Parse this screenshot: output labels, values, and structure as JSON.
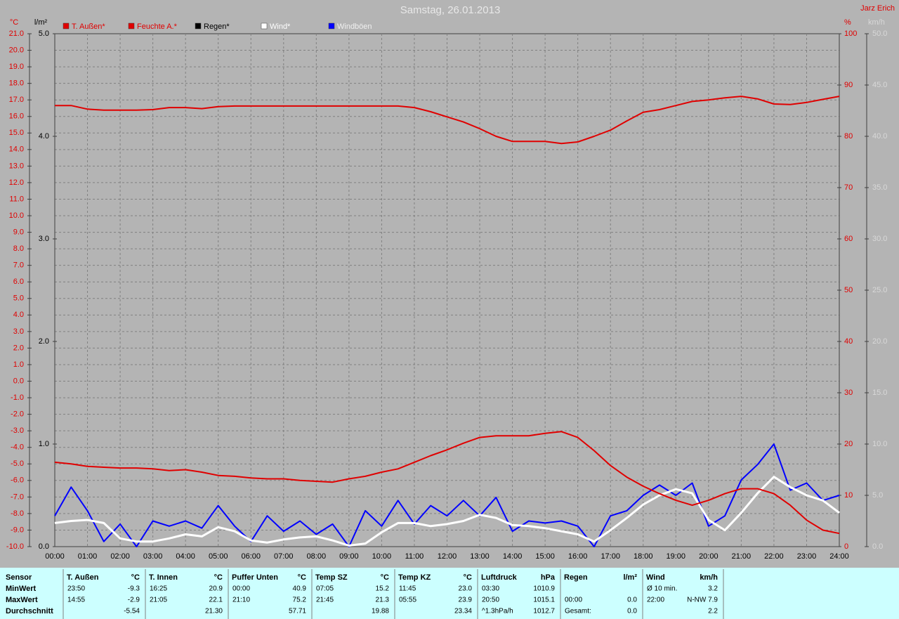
{
  "chart_data": {
    "type": "line",
    "title": "Samstag, 26.01.2013",
    "x": [
      0,
      0.5,
      1,
      1.5,
      2,
      2.5,
      3,
      3.5,
      4,
      4.5,
      5,
      5.5,
      6,
      6.5,
      7,
      7.5,
      8,
      8.5,
      9,
      9.5,
      10,
      10.5,
      11,
      11.5,
      12,
      12.5,
      13,
      13.5,
      14,
      14.5,
      15,
      15.5,
      16,
      16.5,
      17,
      17.5,
      18,
      18.5,
      19,
      19.5,
      20,
      20.5,
      21,
      21.5,
      22,
      22.5,
      23,
      23.5,
      24
    ],
    "xlim": [
      0,
      24
    ],
    "xticks": [
      {
        "value": 0,
        "label": "00:00"
      },
      {
        "value": 1,
        "label": "01:00"
      },
      {
        "value": 2,
        "label": "02:00"
      },
      {
        "value": 3,
        "label": "03:00"
      },
      {
        "value": 4,
        "label": "04:00"
      },
      {
        "value": 5,
        "label": "05:00"
      },
      {
        "value": 6,
        "label": "06:00"
      },
      {
        "value": 7,
        "label": "07:00"
      },
      {
        "value": 8,
        "label": "08:00"
      },
      {
        "value": 9,
        "label": "09:00"
      },
      {
        "value": 10,
        "label": "10:00"
      },
      {
        "value": 11,
        "label": "11:00"
      },
      {
        "value": 12,
        "label": "12:00"
      },
      {
        "value": 13,
        "label": "13:00"
      },
      {
        "value": 14,
        "label": "14:00"
      },
      {
        "value": 15,
        "label": "15:00"
      },
      {
        "value": 16,
        "label": "16:00"
      },
      {
        "value": 17,
        "label": "17:00"
      },
      {
        "value": 18,
        "label": "18:00"
      },
      {
        "value": 19,
        "label": "19:00"
      },
      {
        "value": 20,
        "label": "20:00"
      },
      {
        "value": 21,
        "label": "21:00"
      },
      {
        "value": 22,
        "label": "22:00"
      },
      {
        "value": 23,
        "label": "23:00"
      },
      {
        "value": 24,
        "label": "24:00"
      }
    ],
    "grid": true,
    "axes": [
      {
        "label": "°C",
        "side": "left",
        "color": "#e00000",
        "lim": [
          -10,
          21
        ],
        "ticks": [
          {
            "value": -10,
            "label": "-10.0"
          },
          {
            "value": -9,
            "label": "-9.0"
          },
          {
            "value": -8,
            "label": "-8.0"
          },
          {
            "value": -7,
            "label": "-7.0"
          },
          {
            "value": -6,
            "label": "-6.0"
          },
          {
            "value": -5,
            "label": "-5.0"
          },
          {
            "value": -4,
            "label": "-4.0"
          },
          {
            "value": -3,
            "label": "-3.0"
          },
          {
            "value": -2,
            "label": "-2.0"
          },
          {
            "value": -1,
            "label": "-1.0"
          },
          {
            "value": 0,
            "label": "0.0"
          },
          {
            "value": 1,
            "label": "1.0"
          },
          {
            "value": 2,
            "label": "2.0"
          },
          {
            "value": 3,
            "label": "3.0"
          },
          {
            "value": 4,
            "label": "4.0"
          },
          {
            "value": 5,
            "label": "5.0"
          },
          {
            "value": 6,
            "label": "6.0"
          },
          {
            "value": 7,
            "label": "7.0"
          },
          {
            "value": 8,
            "label": "8.0"
          },
          {
            "value": 9,
            "label": "9.0"
          },
          {
            "value": 10,
            "label": "10.0"
          },
          {
            "value": 11,
            "label": "11.0"
          },
          {
            "value": 12,
            "label": "12.0"
          },
          {
            "value": 13,
            "label": "13.0"
          },
          {
            "value": 14,
            "label": "14.0"
          },
          {
            "value": 15,
            "label": "15.0"
          },
          {
            "value": 16,
            "label": "16.0"
          },
          {
            "value": 17,
            "label": "17.0"
          },
          {
            "value": 18,
            "label": "18.0"
          },
          {
            "value": 19,
            "label": "19.0"
          },
          {
            "value": 20,
            "label": "20.0"
          },
          {
            "value": 21,
            "label": "21.0"
          }
        ]
      },
      {
        "label": "l/m²",
        "side": "left",
        "color": "#000000",
        "lim": [
          0,
          5
        ],
        "ticks": [
          {
            "value": 0,
            "label": "0.0"
          },
          {
            "value": 1,
            "label": "1.0"
          },
          {
            "value": 2,
            "label": "2.0"
          },
          {
            "value": 3,
            "label": "3.0"
          },
          {
            "value": 4,
            "label": "4.0"
          },
          {
            "value": 5,
            "label": "5.0"
          }
        ]
      },
      {
        "label": "%",
        "side": "right",
        "color": "#e00000",
        "lim": [
          0,
          100
        ],
        "ticks": [
          0,
          10,
          20,
          30,
          40,
          50,
          60,
          70,
          80,
          90,
          100
        ]
      },
      {
        "label": "km/h",
        "side": "right",
        "color": "#d8d8d8",
        "lim": [
          0,
          50
        ],
        "ticks": [
          {
            "value": 0,
            "label": "0.0"
          },
          {
            "value": 5,
            "label": "5.0"
          },
          {
            "value": 10,
            "label": "10.0"
          },
          {
            "value": 15,
            "label": "15.0"
          },
          {
            "value": 20,
            "label": "20.0"
          },
          {
            "value": 25,
            "label": "25.0"
          },
          {
            "value": 30,
            "label": "30.0"
          },
          {
            "value": 35,
            "label": "35.0"
          },
          {
            "value": 40,
            "label": "40.0"
          },
          {
            "value": 45,
            "label": "45.0"
          },
          {
            "value": 50,
            "label": "50.0"
          }
        ]
      }
    ],
    "series": [
      {
        "name": "T. Außen*",
        "color": "#e00000",
        "axis": 0,
        "values": [
          -4.9,
          -5.0,
          -5.15,
          -5.2,
          -5.25,
          -5.25,
          -5.3,
          -5.4,
          -5.35,
          -5.5,
          -5.7,
          -5.75,
          -5.85,
          -5.9,
          -5.9,
          -6.0,
          -6.05,
          -6.1,
          -5.9,
          -5.75,
          -5.5,
          -5.3,
          -4.9,
          -4.5,
          -4.15,
          -3.75,
          -3.4,
          -3.3,
          -3.3,
          -3.3,
          -3.15,
          -3.05,
          -3.4,
          -4.2,
          -5.1,
          -5.8,
          -6.35,
          -6.8,
          -7.2,
          -7.5,
          -7.2,
          -6.8,
          -6.5,
          -6.5,
          -6.8,
          -7.5,
          -8.4,
          -9.0,
          -9.2
        ]
      },
      {
        "name": "Feuchte A.*",
        "color": "#e00000",
        "axis": 2,
        "values": [
          86.0,
          86.0,
          85.3,
          85.1,
          85.1,
          85.1,
          85.2,
          85.6,
          85.6,
          85.4,
          85.8,
          85.9,
          85.9,
          85.9,
          85.9,
          85.9,
          85.9,
          85.9,
          85.9,
          85.9,
          85.9,
          85.9,
          85.6,
          84.8,
          83.8,
          82.8,
          81.5,
          80.0,
          79.0,
          79.0,
          79.0,
          78.6,
          78.9,
          80.0,
          81.2,
          83.0,
          84.7,
          85.2,
          86.0,
          86.8,
          87.1,
          87.5,
          87.8,
          87.3,
          86.3,
          86.2,
          86.6,
          87.2,
          87.8
        ]
      },
      {
        "name": "Regen*",
        "color": "#000000",
        "axis": 1
      },
      {
        "name": "Wind*",
        "color": "#ffffff",
        "axis": 3,
        "values": [
          2.3,
          2.5,
          2.6,
          2.3,
          0.8,
          0.5,
          0.5,
          0.8,
          1.2,
          1.0,
          1.9,
          1.5,
          0.6,
          0.4,
          0.7,
          0.9,
          1.0,
          0.6,
          0.1,
          0.3,
          1.4,
          2.3,
          2.3,
          2.0,
          2.2,
          2.5,
          3.1,
          2.8,
          2.1,
          2.0,
          1.8,
          1.5,
          1.2,
          0.5,
          1.6,
          2.8,
          4.1,
          5.0,
          5.6,
          5.2,
          2.6,
          1.6,
          3.3,
          5.2,
          6.8,
          5.8,
          5.0,
          4.5,
          3.3
        ]
      },
      {
        "name": "Windböen",
        "color": "#0000ff",
        "axis": 3,
        "values": [
          3.0,
          5.8,
          3.5,
          0.5,
          2.2,
          0.0,
          2.5,
          2.0,
          2.5,
          1.8,
          4.0,
          2.0,
          0.5,
          3.0,
          1.5,
          2.5,
          1.2,
          2.2,
          0.0,
          3.5,
          2.0,
          4.5,
          2.2,
          4.0,
          3.0,
          4.5,
          3.0,
          4.8,
          1.5,
          2.5,
          2.3,
          2.5,
          2.0,
          0.0,
          3.0,
          3.5,
          5.0,
          6.0,
          5.0,
          6.2,
          2.0,
          3.0,
          6.5,
          8.0,
          10.0,
          5.5,
          6.2,
          4.5,
          5.0
        ]
      }
    ]
  },
  "header": {
    "author": "Jarz Erich"
  },
  "stats": {
    "row_labels": [
      "Sensor",
      "MinWert",
      "MaxWert",
      "Durchschnitt"
    ],
    "columns": [
      {
        "title": "T. Außen",
        "unit": "°C",
        "cells": [
          [
            "23:50",
            "-9.3"
          ],
          [
            "14:55",
            "-2.9"
          ],
          [
            null,
            "-5.54"
          ]
        ]
      },
      {
        "title": "T. Innen",
        "unit": "°C",
        "cells": [
          [
            "16:25",
            "20.9"
          ],
          [
            "21:05",
            "22.1"
          ],
          [
            null,
            "21.30"
          ]
        ]
      },
      {
        "title": "Puffer Unten",
        "unit": "°C",
        "cells": [
          [
            "00:00",
            "40.9"
          ],
          [
            "21:10",
            "75.2"
          ],
          [
            null,
            "57.71"
          ]
        ]
      },
      {
        "title": "Temp SZ",
        "unit": "°C",
        "cells": [
          [
            "07:05",
            "15.2"
          ],
          [
            "21:45",
            "21.3"
          ],
          [
            null,
            "19.88"
          ]
        ]
      },
      {
        "title": "Temp KZ",
        "unit": "°C",
        "cells": [
          [
            "11:45",
            "23.0"
          ],
          [
            "05:55",
            "23.9"
          ],
          [
            null,
            "23.34"
          ]
        ]
      },
      {
        "title": "Luftdruck",
        "unit": "hPa",
        "cells": [
          [
            "03:30",
            "1010.9"
          ],
          [
            "20:50",
            "1015.1"
          ],
          [
            "^1.3hPa/h",
            "1012.7"
          ]
        ]
      },
      {
        "title": "Regen",
        "unit": "l/m²",
        "cells": [
          [
            null,
            null
          ],
          [
            "00:00",
            "0.0"
          ],
          [
            "Gesamt:",
            "0.0"
          ]
        ]
      },
      {
        "title": "Wind",
        "unit": "km/h",
        "cells": [
          [
            "Ø 10 min.",
            "3.2"
          ],
          [
            "22:00",
            "N-NW 7.9"
          ],
          [
            null,
            "2.2"
          ]
        ]
      }
    ]
  }
}
